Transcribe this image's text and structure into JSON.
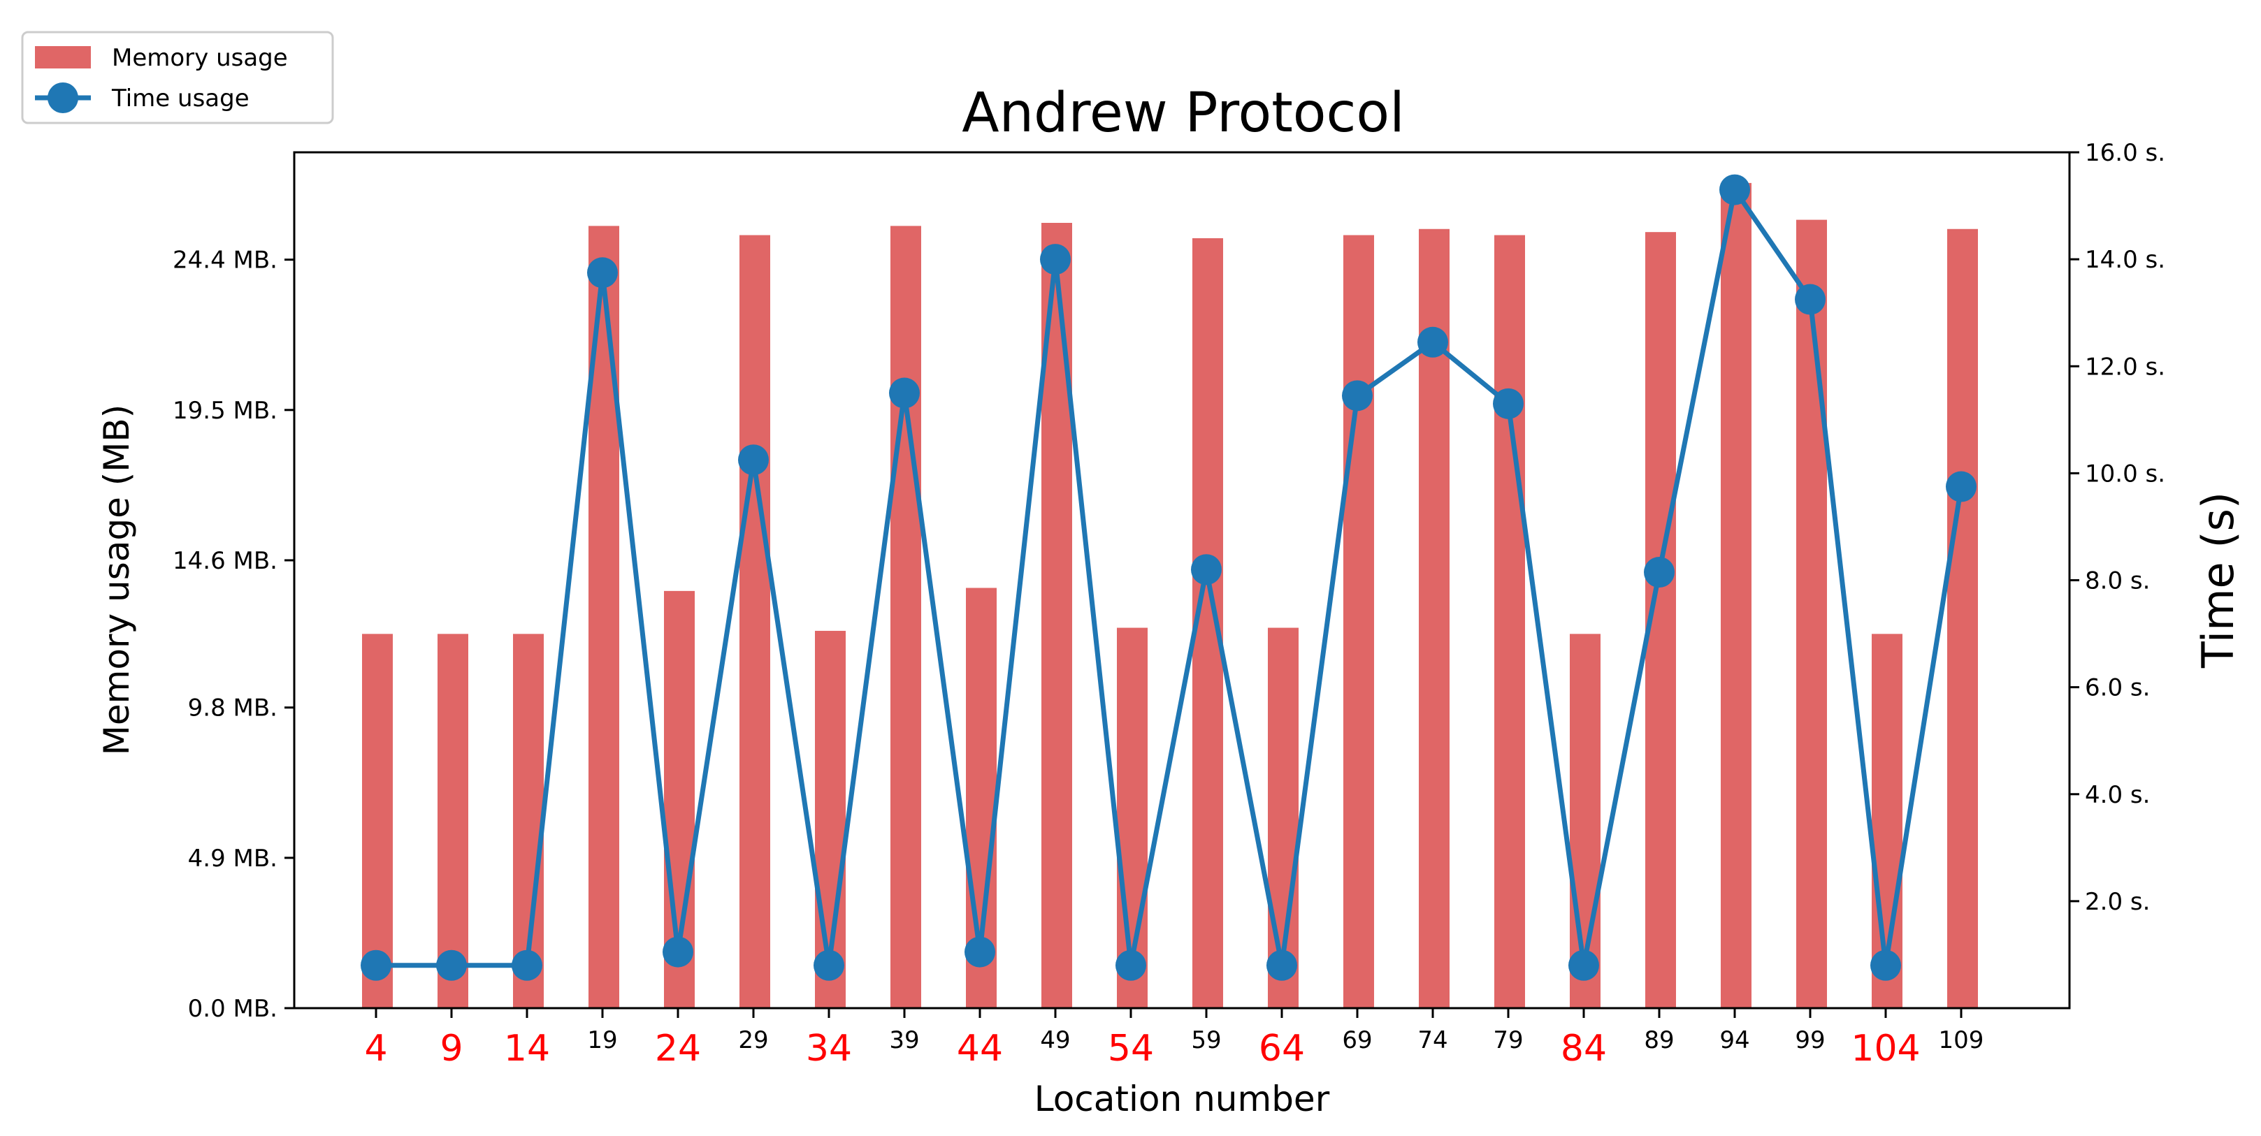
{
  "chart_data": {
    "type": "bar",
    "title": "Andrew Protocol",
    "xlabel": "Location number",
    "ylabel": "Memory usage (MB)",
    "y2label": "Time (s)",
    "categories": [
      "4",
      "9",
      "14",
      "19",
      "24",
      "29",
      "34",
      "39",
      "44",
      "49",
      "54",
      "59",
      "64",
      "69",
      "74",
      "79",
      "84",
      "89",
      "94",
      "99",
      "104",
      "109"
    ],
    "highlighted_categories": [
      "4",
      "9",
      "14",
      "24",
      "34",
      "44",
      "54",
      "64",
      "84",
      "104"
    ],
    "series": [
      {
        "name": "Memory usage",
        "type": "bar",
        "axis": "left",
        "color": "#e06666",
        "values": [
          12.2,
          12.2,
          12.2,
          25.5,
          13.6,
          25.2,
          12.3,
          25.5,
          13.7,
          25.6,
          12.4,
          25.1,
          12.4,
          25.2,
          25.4,
          25.2,
          12.2,
          25.3,
          26.9,
          25.7,
          12.2,
          25.4
        ]
      },
      {
        "name": "Time usage",
        "type": "line",
        "axis": "right",
        "color": "#1f77b4",
        "values": [
          0.8,
          0.8,
          0.8,
          13.75,
          1.05,
          10.25,
          0.8,
          11.5,
          1.05,
          14.0,
          0.8,
          8.2,
          0.8,
          11.45,
          12.45,
          11.3,
          0.8,
          8.15,
          15.3,
          13.25,
          0.8,
          9.75
        ]
      }
    ],
    "ylim": [
      0,
      27.9
    ],
    "y2lim": [
      0,
      16.0
    ],
    "yticks": [
      {
        "value": 0.0,
        "label": "0.0 MB."
      },
      {
        "value": 4.9,
        "label": "4.9 MB."
      },
      {
        "value": 9.8,
        "label": "9.8 MB."
      },
      {
        "value": 14.6,
        "label": "14.6 MB."
      },
      {
        "value": 19.5,
        "label": "19.5 MB."
      },
      {
        "value": 24.4,
        "label": "24.4 MB."
      }
    ],
    "y2ticks": [
      {
        "value": 2.0,
        "label": "2.0 s."
      },
      {
        "value": 4.0,
        "label": "4.0 s."
      },
      {
        "value": 6.0,
        "label": "6.0 s."
      },
      {
        "value": 8.0,
        "label": "8.0 s."
      },
      {
        "value": 10.0,
        "label": "10.0 s."
      },
      {
        "value": 12.0,
        "label": "12.0 s."
      },
      {
        "value": 14.0,
        "label": "14.0 s."
      },
      {
        "value": 16.0,
        "label": "16.0 s."
      }
    ],
    "legend": {
      "placement": "top-left",
      "entries": [
        "Memory usage",
        "Time usage"
      ]
    },
    "grid": false,
    "highlight_color": "#ff0000"
  }
}
